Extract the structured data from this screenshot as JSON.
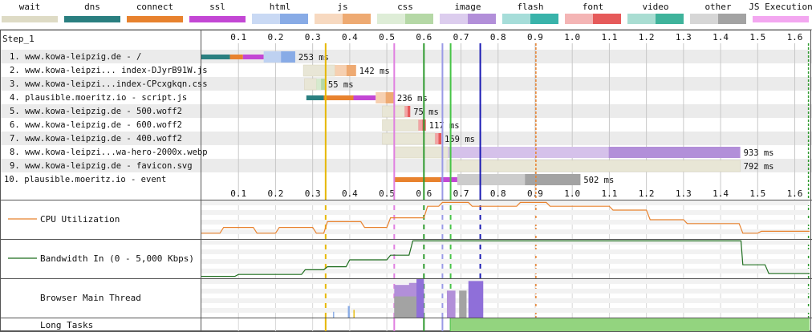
{
  "legend": [
    {
      "label": "wait",
      "color": "#dedbc5"
    },
    {
      "label": "dns",
      "color": "#2a7f80"
    },
    {
      "label": "connect",
      "color": "#e8822e"
    },
    {
      "label": "ssl",
      "color": "#c347d4"
    },
    {
      "label": "html",
      "color": "#88abe6"
    },
    {
      "label": "js",
      "color": "#eeaa72"
    },
    {
      "label": "css",
      "color": "#b5d8a6"
    },
    {
      "label": "image",
      "color": "#b28fd9"
    },
    {
      "label": "flash",
      "color": "#39b3aa"
    },
    {
      "label": "font",
      "color": "#e65a5a"
    },
    {
      "label": "video",
      "color": "#3fb39b"
    },
    {
      "label": "other",
      "color": "#a3a3a3"
    },
    {
      "label": "JS Execution",
      "color": "#f3a7f0"
    }
  ],
  "step_label": "Step_1",
  "chart_data": {
    "type": "waterfall",
    "xlim": [
      0,
      1.64
    ],
    "ticks": [
      "0.1",
      "0.2",
      "0.3",
      "0.4",
      "0.5",
      "0.6",
      "0.7",
      "0.8",
      "0.9",
      "1.0",
      "1.1",
      "1.2",
      "1.3",
      "1.4",
      "1.5",
      "1.6"
    ],
    "tick_values": [
      0.1,
      0.2,
      0.3,
      0.4,
      0.5,
      0.6,
      0.7,
      0.8,
      0.9,
      1.0,
      1.1,
      1.2,
      1.3,
      1.4,
      1.5,
      1.6
    ],
    "requests": [
      {
        "label": "1. www.kowa-leipzig.de - /",
        "duration": "253 ms",
        "segments": [
          {
            "type": "dns",
            "start": 0.0,
            "end": 0.077
          },
          {
            "type": "connect",
            "start": 0.077,
            "end": 0.112
          },
          {
            "type": "ssl",
            "start": 0.112,
            "end": 0.168
          },
          {
            "type": "html",
            "start": 0.168,
            "end": 0.253
          }
        ]
      },
      {
        "label": "2. www.kowa-leipzi... index-DJyrB91W.js",
        "duration": "142 ms",
        "segments": [
          {
            "type": "wait",
            "start": 0.275,
            "end": 0.36
          },
          {
            "type": "js",
            "start": 0.36,
            "end": 0.417
          }
        ]
      },
      {
        "label": "3. www.kowa-leipzi...index-CPcxgkqn.css",
        "duration": "55 ms",
        "segments": [
          {
            "type": "wait",
            "start": 0.278,
            "end": 0.31
          },
          {
            "type": "css",
            "start": 0.31,
            "end": 0.333
          }
        ]
      },
      {
        "label": "4. plausible.moeritz.io - script.js",
        "duration": "236 ms",
        "segments": [
          {
            "type": "dns",
            "start": 0.283,
            "end": 0.33
          },
          {
            "type": "connect",
            "start": 0.33,
            "end": 0.41
          },
          {
            "type": "ssl",
            "start": 0.41,
            "end": 0.47
          },
          {
            "type": "js",
            "start": 0.47,
            "end": 0.519
          }
        ]
      },
      {
        "label": "5. www.kowa-leipzig.de - 500.woff2",
        "duration": "75 ms",
        "segments": [
          {
            "type": "wait",
            "start": 0.488,
            "end": 0.548
          },
          {
            "type": "font",
            "start": 0.548,
            "end": 0.563
          }
        ]
      },
      {
        "label": "6. www.kowa-leipzig.de - 600.woff2",
        "duration": "117 ms",
        "segments": [
          {
            "type": "wait",
            "start": 0.488,
            "end": 0.585
          },
          {
            "type": "font",
            "start": 0.585,
            "end": 0.605
          }
        ]
      },
      {
        "label": "7. www.kowa-leipzig.de - 400.woff2",
        "duration": "159 ms",
        "segments": [
          {
            "type": "wait",
            "start": 0.488,
            "end": 0.63
          },
          {
            "type": "font",
            "start": 0.63,
            "end": 0.647
          }
        ]
      },
      {
        "label": "8. www.kowa-leipzi...wa-hero-2000x.webp",
        "duration": "933 ms",
        "segments": [
          {
            "type": "wait",
            "start": 0.52,
            "end": 0.665
          },
          {
            "type": "image",
            "start": 0.665,
            "end": 1.453
          }
        ]
      },
      {
        "label": "9. www.kowa-leipzig.de - favicon.svg",
        "duration": "792 ms",
        "segments": [
          {
            "type": "wait",
            "start": 0.662,
            "end": 1.453
          }
        ]
      },
      {
        "label": "10. plausible.moeritz.io - event",
        "duration": "502 ms",
        "segments": [
          {
            "type": "connect",
            "start": 0.52,
            "end": 0.645
          },
          {
            "type": "ssl",
            "start": 0.645,
            "end": 0.69
          },
          {
            "type": "other",
            "start": 0.69,
            "end": 1.022
          }
        ]
      }
    ],
    "markers": [
      {
        "time": 0.335,
        "color": "#e6b800"
      },
      {
        "time": 0.52,
        "color": "#e07fe0"
      },
      {
        "time": 0.6,
        "color": "#2f9a2f"
      },
      {
        "time": 0.65,
        "color": "#9a9ae6"
      },
      {
        "time": 0.672,
        "color": "#47c447"
      },
      {
        "time": 0.752,
        "color": "#1a1ab3"
      },
      {
        "time": 0.902,
        "color": "#e8822e",
        "dashed": true
      },
      {
        "time": 1.637,
        "color": "#2f9a2f",
        "dashed": true
      }
    ],
    "cpu_label": "CPU Utilization",
    "cpu_series": [
      [
        0,
        0.15
      ],
      [
        0.05,
        0.15
      ],
      [
        0.06,
        0.3
      ],
      [
        0.14,
        0.3
      ],
      [
        0.15,
        0.15
      ],
      [
        0.2,
        0.15
      ],
      [
        0.21,
        0.3
      ],
      [
        0.3,
        0.3
      ],
      [
        0.31,
        0.15
      ],
      [
        0.33,
        0.15
      ],
      [
        0.34,
        0.45
      ],
      [
        0.43,
        0.45
      ],
      [
        0.44,
        0.3
      ],
      [
        0.5,
        0.3
      ],
      [
        0.51,
        0.55
      ],
      [
        0.6,
        0.55
      ],
      [
        0.61,
        0.85
      ],
      [
        0.64,
        0.85
      ],
      [
        0.65,
        0.95
      ],
      [
        0.72,
        0.95
      ],
      [
        0.73,
        0.85
      ],
      [
        0.85,
        0.85
      ],
      [
        0.86,
        0.95
      ],
      [
        0.93,
        0.95
      ],
      [
        0.94,
        0.85
      ],
      [
        1.1,
        0.85
      ],
      [
        1.11,
        0.75
      ],
      [
        1.2,
        0.75
      ],
      [
        1.21,
        0.5
      ],
      [
        1.3,
        0.5
      ],
      [
        1.31,
        0.4
      ],
      [
        1.45,
        0.4
      ],
      [
        1.46,
        0.15
      ],
      [
        1.5,
        0.15
      ],
      [
        1.51,
        0.2
      ],
      [
        1.64,
        0.2
      ]
    ],
    "bandwidth_label": "Bandwidth In (0 - 5,000 Kbps)",
    "bandwidth_series": [
      [
        0,
        0.05
      ],
      [
        0.09,
        0.05
      ],
      [
        0.1,
        0.1
      ],
      [
        0.27,
        0.1
      ],
      [
        0.28,
        0.22
      ],
      [
        0.33,
        0.22
      ],
      [
        0.34,
        0.3
      ],
      [
        0.39,
        0.3
      ],
      [
        0.4,
        0.48
      ],
      [
        0.5,
        0.48
      ],
      [
        0.51,
        0.6
      ],
      [
        0.56,
        0.6
      ],
      [
        0.57,
        0.97
      ],
      [
        1.455,
        0.97
      ],
      [
        1.46,
        0.35
      ],
      [
        1.52,
        0.35
      ],
      [
        1.53,
        0.12
      ],
      [
        1.64,
        0.12
      ]
    ],
    "main_thread_label": "Browser Main Thread",
    "main_thread_blocks": [
      {
        "start": 0.52,
        "end": 0.57,
        "level": 0.85,
        "color": "#b28fd9"
      },
      {
        "start": 0.56,
        "end": 0.6,
        "level": 0.9,
        "color": "#b28fd9"
      },
      {
        "start": 0.52,
        "end": 0.6,
        "level": 0.55,
        "color": "#a3a3a3"
      },
      {
        "start": 0.662,
        "end": 0.685,
        "level": 0.7,
        "color": "#b28fd9"
      },
      {
        "start": 0.695,
        "end": 0.715,
        "level": 0.7,
        "color": "#a3a3a3"
      },
      {
        "start": 0.72,
        "end": 0.76,
        "level": 0.95,
        "color": "#8f6fd9"
      },
      {
        "start": 0.58,
        "end": 0.6,
        "level": 1.0,
        "color": "#8f6fd9"
      },
      {
        "start": 0.395,
        "end": 0.4,
        "level": 0.3,
        "color": "#88abe6"
      },
      {
        "start": 0.41,
        "end": 0.413,
        "level": 0.2,
        "color": "#e6b800"
      },
      {
        "start": 0.355,
        "end": 0.358,
        "level": 0.15,
        "color": "#88abe6"
      }
    ],
    "long_tasks_label": "Long Tasks",
    "long_tasks": [
      {
        "start": 0.672,
        "end": 1.64,
        "color": "#93d47f"
      }
    ]
  }
}
